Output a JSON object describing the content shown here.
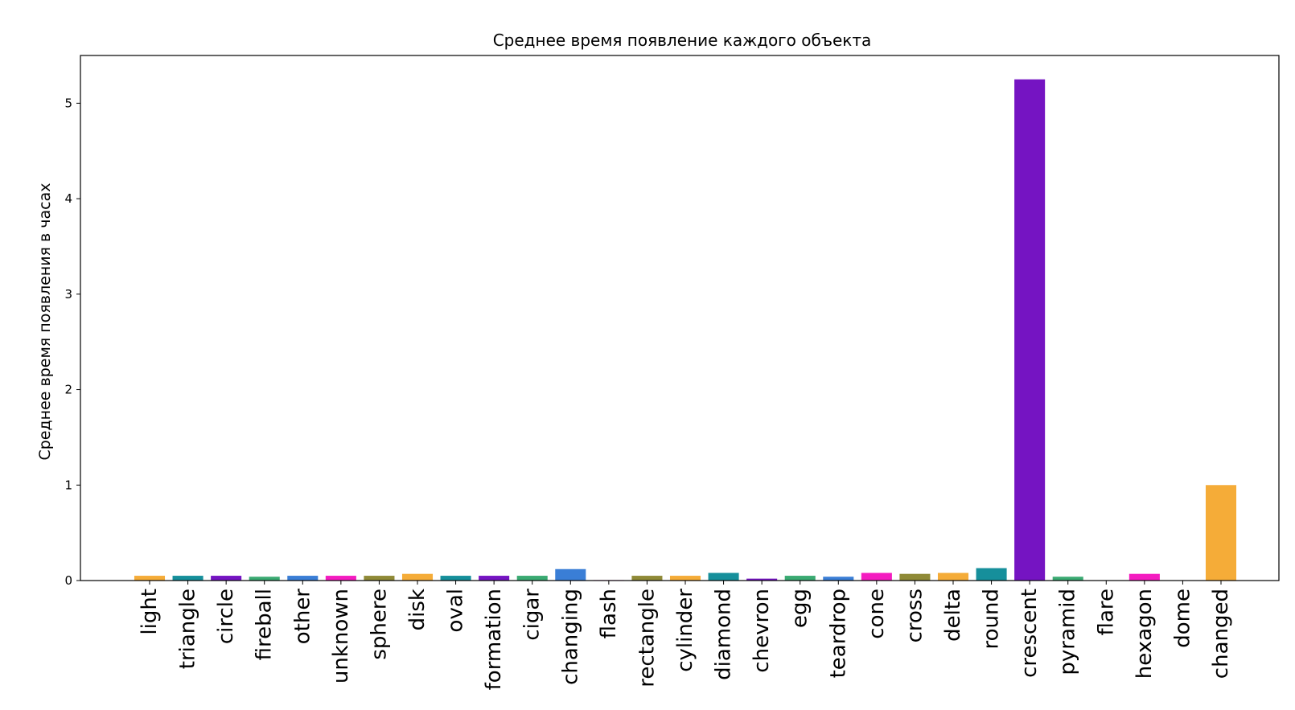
{
  "chart_data": {
    "type": "bar",
    "title": "Среднее время появление каждого объекта",
    "xlabel": "",
    "ylabel": "Среднее время появления в часах",
    "ylim": [
      0,
      5.5
    ],
    "yticks": [
      0,
      1,
      2,
      3,
      4,
      5
    ],
    "grid": false,
    "categories": [
      "light",
      "triangle",
      "circle",
      "fireball",
      "other",
      "unknown",
      "sphere",
      "disk",
      "oval",
      "formation",
      "cigar",
      "changing",
      "flash",
      "rectangle",
      "cylinder",
      "diamond",
      "chevron",
      "egg",
      "teardrop",
      "cone",
      "cross",
      "delta",
      "round",
      "crescent",
      "pyramid",
      "flare",
      "hexagon",
      "dome",
      "changed"
    ],
    "values": [
      0.05,
      0.05,
      0.05,
      0.04,
      0.05,
      0.05,
      0.05,
      0.07,
      0.05,
      0.05,
      0.05,
      0.12,
      0.005,
      0.05,
      0.05,
      0.08,
      0.02,
      0.05,
      0.04,
      0.08,
      0.07,
      0.08,
      0.13,
      5.25,
      0.04,
      0.0,
      0.07,
      0.0,
      1.0
    ],
    "colors": [
      "#f5ac38",
      "#168f9b",
      "#7514c2",
      "#3aaa72",
      "#3a7ed6",
      "#f41cc0",
      "#8f8a37",
      "#f5ac38",
      "#168f9b",
      "#7514c2",
      "#3aaa72",
      "#3a7ed6",
      "#f41cc0",
      "#8f8a37",
      "#f5ac38",
      "#168f9b",
      "#7514c2",
      "#3aaa72",
      "#3a7ed6",
      "#f41cc0",
      "#8f8a37",
      "#f5ac38",
      "#168f9b",
      "#7514c2",
      "#3aaa72",
      "#3a7ed6",
      "#f41cc0",
      "#8f8a37",
      "#f5ac38"
    ]
  }
}
